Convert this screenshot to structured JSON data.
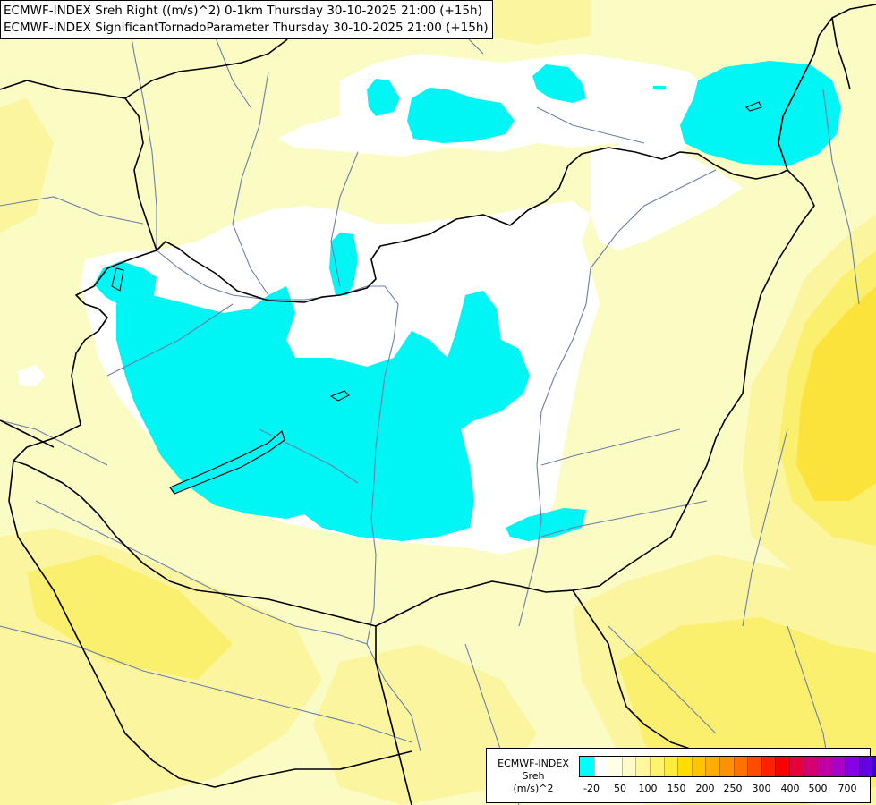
{
  "header": {
    "line1": "ECMWF-INDEX Sreh Right ((m/s)^2) 0-1km Thursday 30-10-2025 21:00 (+15h)",
    "line2": "ECMWF-INDEX SignificantTornadoParameter Thursday 30-10-2025 21:00 (+15h)"
  },
  "legend": {
    "title": [
      "ECMWF-INDEX",
      "Sreh",
      "(m/s)^2"
    ],
    "colors": [
      "#00ffff",
      "#ffffff",
      "#ffffe6",
      "#fffbc8",
      "#fff79e",
      "#fff36e",
      "#ffeb3c",
      "#ffdc00",
      "#ffc400",
      "#ffac00",
      "#ff9200",
      "#ff7200",
      "#ff4c00",
      "#ff2200",
      "#ff0000",
      "#e8003c",
      "#d60070",
      "#c000a0",
      "#a800c8",
      "#8800e6",
      "#6400e6",
      "#3c00c8",
      "#1e0096",
      "#000064"
    ],
    "ticks": [
      "-20",
      "50",
      "100",
      "150",
      "200",
      "250",
      "300",
      "400",
      "500",
      "700"
    ]
  },
  "colors": {
    "background": "#fbfbc4",
    "cyan": "#00f5f5",
    "white": "#ffffff",
    "pale": "#fdfdd8",
    "light_yellow": "#fbf5a0",
    "yellow": "#fbef6e",
    "orange_yellow": "#fce33c",
    "border": "#000000",
    "river": "#6b7fa8"
  }
}
